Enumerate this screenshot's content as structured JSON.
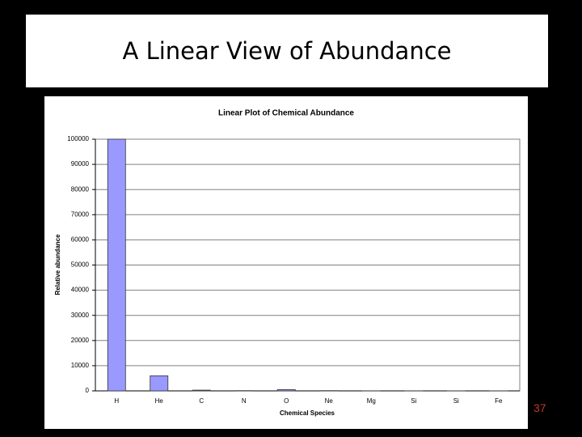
{
  "slide": {
    "title": "A Linear View of Abundance",
    "page_number": "37"
  },
  "chart_data": {
    "type": "bar",
    "title": "Linear Plot of Chemical Abundance",
    "x_label": "Chemical Species",
    "y_label": "Relative abundance",
    "categories": [
      "H",
      "He",
      "C",
      "N",
      "O",
      "Ne",
      "Mg",
      "Si",
      "Si",
      "Fe"
    ],
    "values": [
      100000,
      6000,
      300,
      100,
      500,
      100,
      40,
      40,
      20,
      30
    ],
    "color": "#9999ff",
    "ylim": [
      0,
      100000
    ],
    "yticks": [
      0,
      10000,
      20000,
      30000,
      40000,
      50000,
      60000,
      70000,
      80000,
      90000,
      100000
    ],
    "grid": true
  }
}
